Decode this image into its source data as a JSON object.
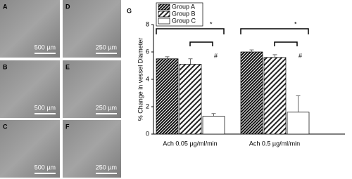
{
  "panels": [
    {
      "label": "A",
      "scale": "500 µm"
    },
    {
      "label": "B",
      "scale": "500 µm"
    },
    {
      "label": "C",
      "scale": "500 µm"
    },
    {
      "label": "D",
      "scale": "250 µm"
    },
    {
      "label": "E",
      "scale": "250 µm"
    },
    {
      "label": "F",
      "scale": "250 µm"
    }
  ],
  "chart_data": {
    "type": "bar",
    "panel_label": "G",
    "y_label": "% Change in vessel Diameter",
    "categories": [
      "Ach 0.05 µg/ml/min",
      "Ach 0.5 µg/ml/min"
    ],
    "series": [
      {
        "name": "Group A",
        "color": "#111111",
        "values": [
          5.5,
          6.0
        ],
        "errors": [
          0.15,
          0.15
        ]
      },
      {
        "name": "Group B",
        "color": "#222222",
        "values": [
          5.1,
          5.6
        ],
        "errors": [
          0.4,
          0.2
        ]
      },
      {
        "name": "Group C",
        "color": "#ffffff",
        "values": [
          1.3,
          1.6
        ],
        "errors": [
          0.2,
          1.2
        ]
      }
    ],
    "annotations": [
      "*",
      "#",
      "*",
      "#"
    ],
    "ylim": [
      0,
      8
    ],
    "yticks": [
      0,
      2,
      4,
      6,
      8
    ]
  }
}
